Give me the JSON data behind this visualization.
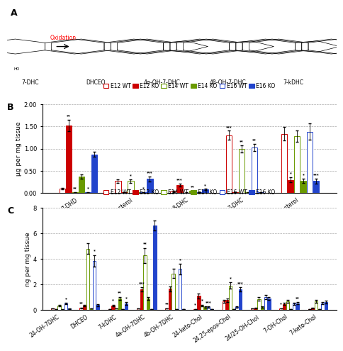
{
  "panel_B": {
    "categories": [
      "7-DHD",
      "Desmosterol",
      "8-DHC",
      "7-DHC",
      "Cholesterol"
    ],
    "ylabel": "μg per mg tissue",
    "ylim": [
      0,
      2.0
    ],
    "yticks": [
      0.0,
      0.5,
      1.0,
      1.5,
      2.0
    ],
    "values": [
      [
        0.1,
        1.52,
        0.02,
        0.37,
        0.02,
        0.87
      ],
      [
        0.27,
        0.02,
        0.27,
        0.02,
        0.02,
        0.32
      ],
      [
        0.04,
        0.18,
        0.01,
        0.05,
        0.02,
        0.08
      ],
      [
        1.3,
        0.02,
        1.0,
        0.02,
        1.02,
        0.02
      ],
      [
        1.33,
        0.3,
        1.28,
        0.28,
        1.38,
        0.27
      ]
    ],
    "errors": [
      [
        0.02,
        0.13,
        0.01,
        0.05,
        0.01,
        0.06
      ],
      [
        0.04,
        0.01,
        0.04,
        0.01,
        0.01,
        0.06
      ],
      [
        0.01,
        0.03,
        0.01,
        0.01,
        0.005,
        0.015
      ],
      [
        0.1,
        0.01,
        0.08,
        0.01,
        0.08,
        0.01
      ],
      [
        0.15,
        0.05,
        0.12,
        0.05,
        0.18,
        0.05
      ]
    ],
    "stars": [
      [
        "",
        "**",
        "**",
        "",
        "*",
        ""
      ],
      [
        "",
        "",
        "*",
        "",
        "*",
        "***"
      ],
      [
        "",
        "***",
        "",
        "**",
        "",
        "*"
      ],
      [
        "***",
        "",
        "**",
        "",
        "**",
        ""
      ],
      [
        "",
        "*",
        "",
        "*",
        "",
        "***"
      ]
    ]
  },
  "panel_C": {
    "categories": [
      "24-OH-7DHC",
      "DHCEO",
      "7-kDHC",
      "4a-OH-7DHC",
      "4b-OH-7DHC",
      "24-keto-Chol",
      "24,25-epox-Chol",
      "24/25-OH-Chol",
      "7-OH-Chol",
      "7-keto-Chol"
    ],
    "ylabel": "ng per mg tissue",
    "ylim": [
      0,
      8
    ],
    "yticks": [
      0,
      2,
      4,
      6,
      8
    ],
    "values": [
      [
        0.1,
        0.05,
        0.35,
        0.02,
        0.5,
        0.08
      ],
      [
        0.15,
        0.35,
        4.8,
        0.1,
        3.85,
        0.38
      ],
      [
        0.05,
        0.35,
        0.1,
        0.9,
        0.05,
        0.5
      ],
      [
        0.1,
        1.6,
        4.25,
        0.9,
        0.05,
        6.6
      ],
      [
        0.1,
        1.65,
        2.85,
        0.05,
        3.2,
        0.05
      ],
      [
        0.05,
        1.1,
        0.35,
        0.2,
        0.2,
        0.05
      ],
      [
        0.65,
        0.75,
        1.9,
        0.05,
        0.2,
        1.6
      ],
      [
        0.1,
        0.15,
        0.85,
        0.2,
        1.0,
        0.9
      ],
      [
        0.1,
        0.45,
        0.65,
        0.05,
        0.48,
        0.52
      ],
      [
        0.05,
        0.15,
        0.65,
        0.05,
        0.5,
        0.62
      ]
    ],
    "errors": [
      [
        0.02,
        0.01,
        0.05,
        0.01,
        0.05,
        0.02
      ],
      [
        0.03,
        0.05,
        0.4,
        0.02,
        0.45,
        0.08
      ],
      [
        0.01,
        0.05,
        0.02,
        0.12,
        0.01,
        0.1
      ],
      [
        0.02,
        0.18,
        0.6,
        0.12,
        0.01,
        0.4
      ],
      [
        0.02,
        0.2,
        0.35,
        0.01,
        0.4,
        0.01
      ],
      [
        0.01,
        0.2,
        0.05,
        0.05,
        0.05,
        0.01
      ],
      [
        0.1,
        0.12,
        0.25,
        0.01,
        0.05,
        0.18
      ],
      [
        0.02,
        0.03,
        0.12,
        0.05,
        0.15,
        0.12
      ],
      [
        0.02,
        0.08,
        0.1,
        0.01,
        0.08,
        0.08
      ],
      [
        0.01,
        0.03,
        0.1,
        0.01,
        0.08,
        0.1
      ]
    ],
    "stars": [
      [
        "",
        "",
        "",
        "",
        "*",
        ""
      ],
      [
        "**",
        "",
        "",
        "",
        "*",
        ""
      ],
      [
        "",
        "*",
        "",
        "**",
        "",
        "*"
      ],
      [
        "",
        "***",
        "**",
        "",
        "",
        ""
      ],
      [
        "**",
        "",
        "",
        "",
        "*",
        ""
      ],
      [
        "*",
        "",
        "*",
        "",
        "***",
        ""
      ],
      [
        "",
        "",
        "*",
        "",
        "",
        "***"
      ],
      [
        "",
        "",
        "",
        "",
        "",
        ""
      ],
      [
        "*",
        "",
        "",
        "",
        "",
        "**"
      ],
      [
        "",
        "",
        "",
        "",
        "",
        ""
      ]
    ]
  },
  "legend_labels": [
    "E12 WT",
    "E12 KO",
    "E14 WT",
    "E14 KO",
    "E16 WT",
    "E16 KO"
  ],
  "colors": [
    "#cc0000",
    "#cc0000",
    "#6a9a00",
    "#6a9a00",
    "#2244cc",
    "#2244cc"
  ],
  "filled": [
    false,
    true,
    false,
    true,
    false,
    true
  ]
}
